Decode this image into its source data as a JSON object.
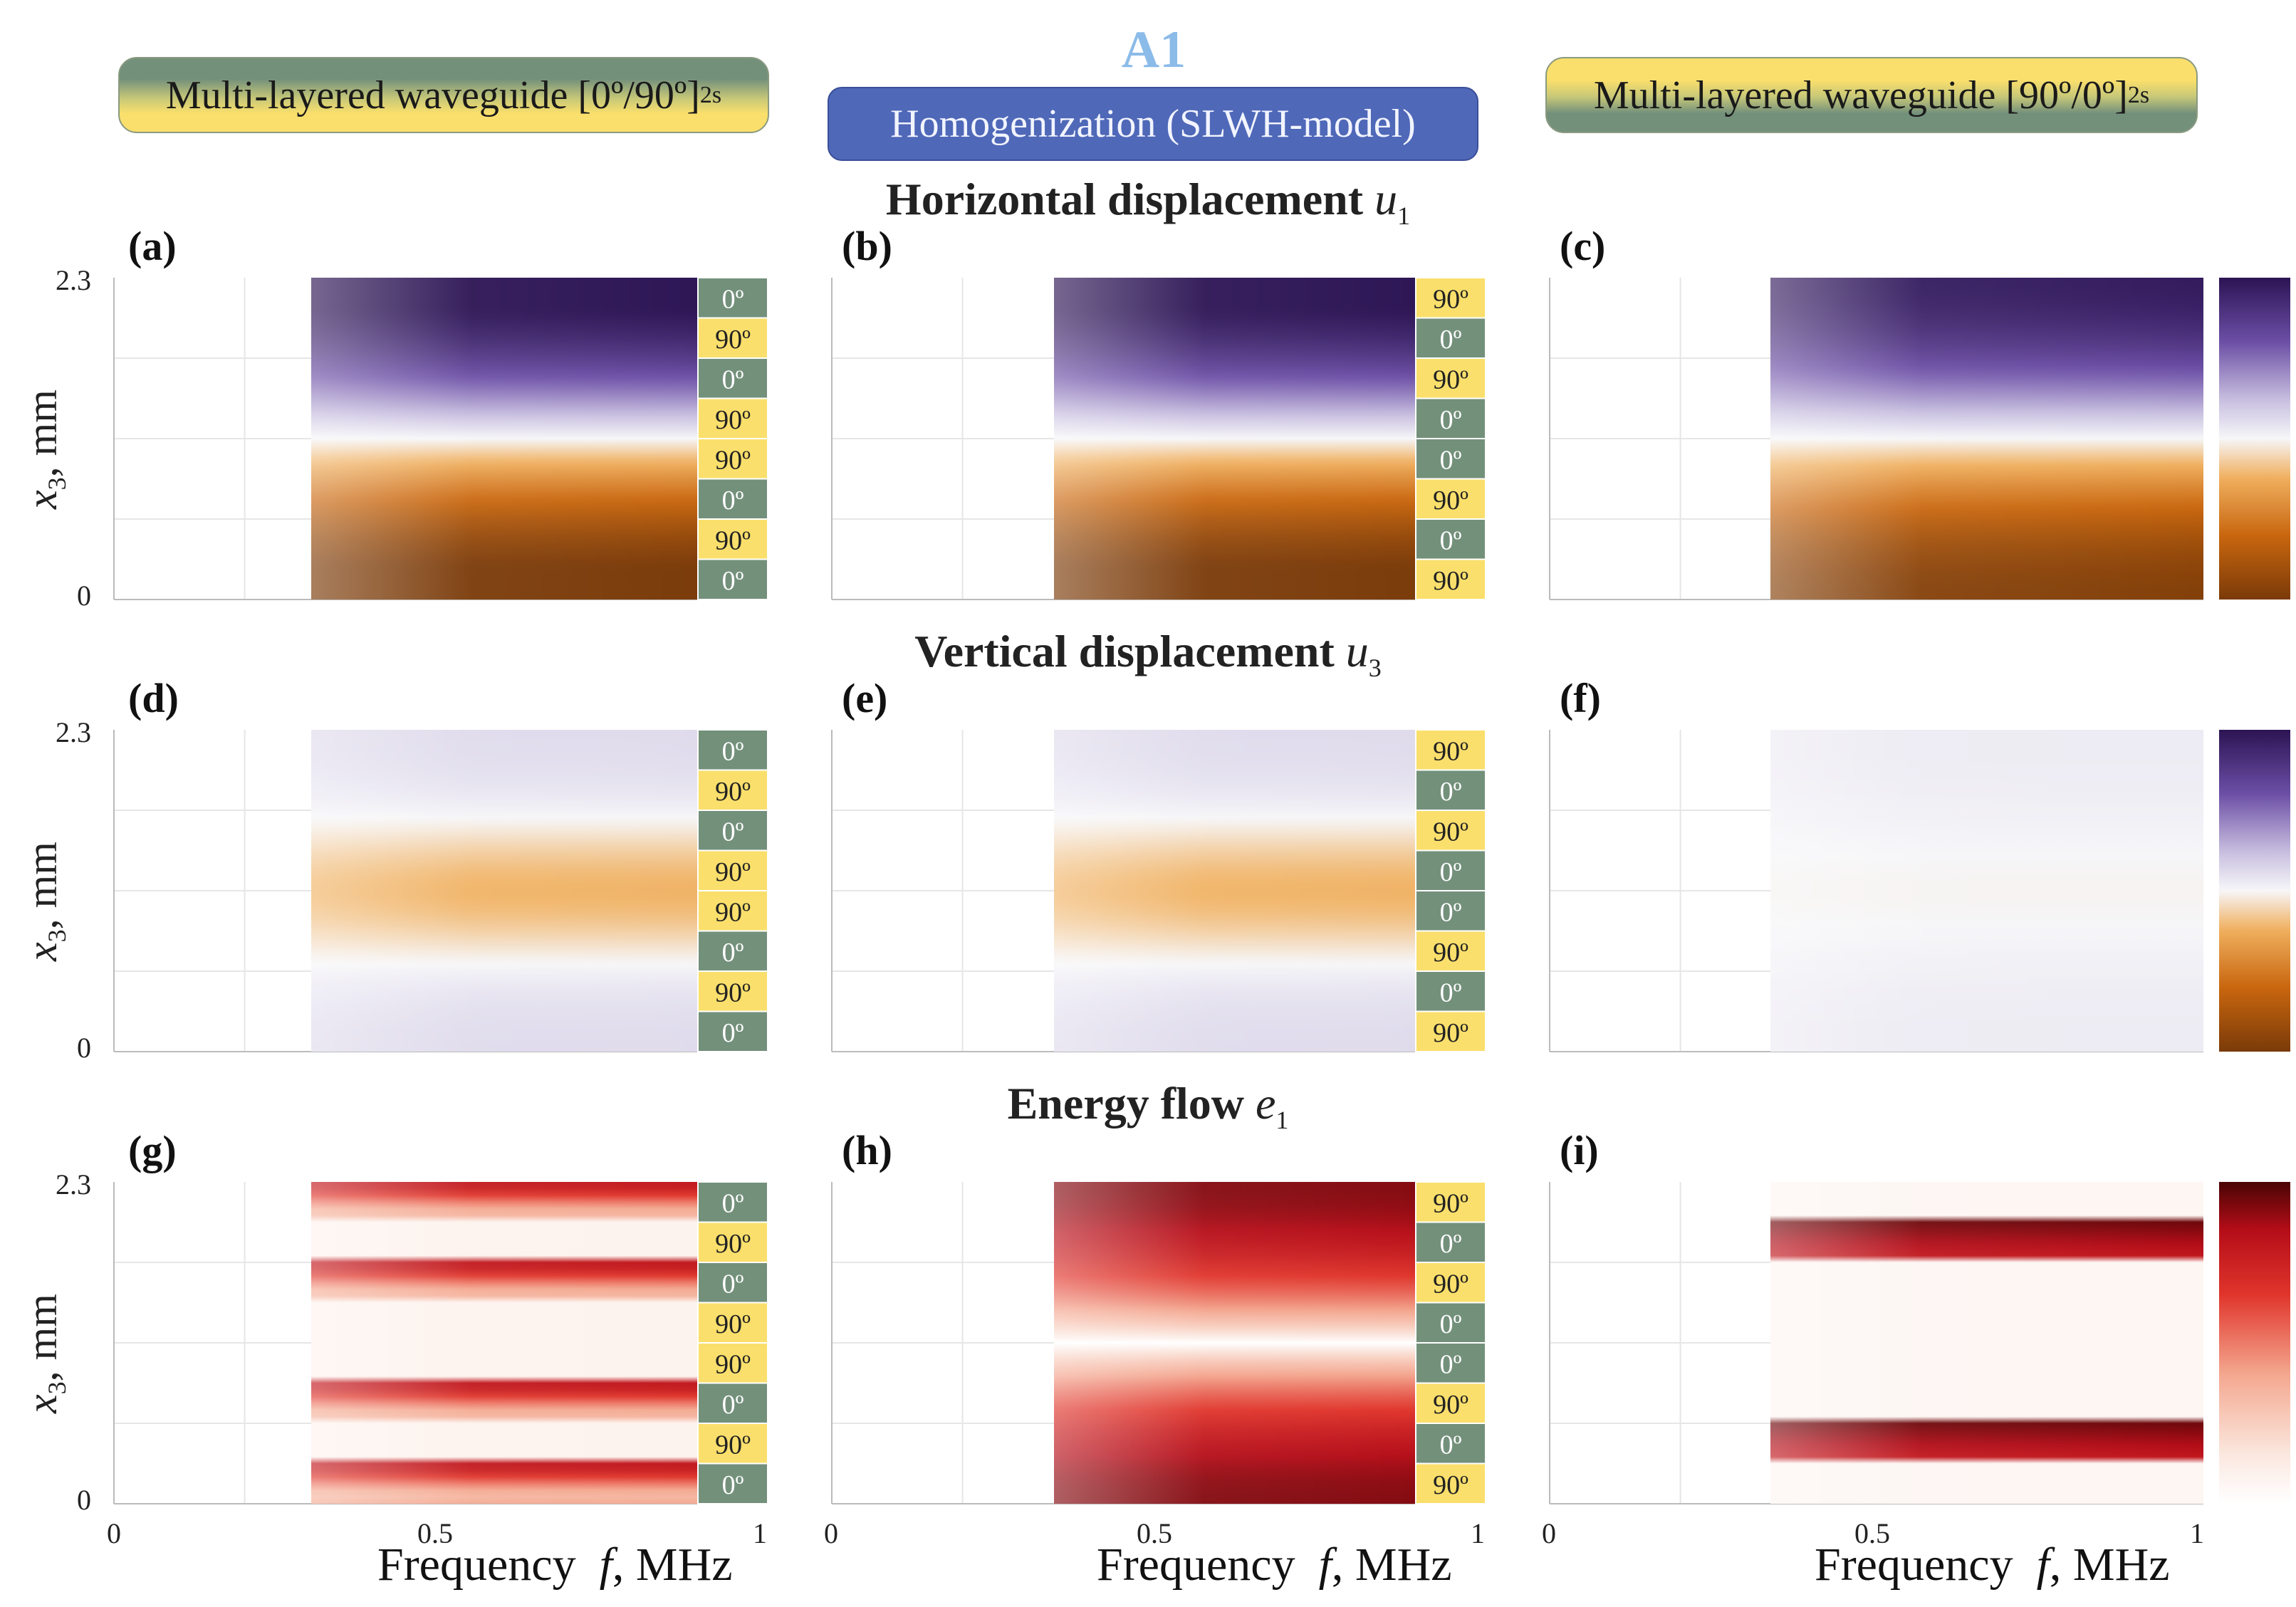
{
  "header": {
    "top_label": "A1",
    "left_banner": "Multi-layered waveguide [0º/90º]",
    "left_banner_sub": "2s",
    "middle_banner": "Homogenization (SLWH-model)",
    "right_banner": "Multi-layered waveguide [90º/0º]",
    "right_banner_sub": "2s"
  },
  "rows": [
    {
      "title": "Horizontal displacement",
      "symbol": "u",
      "symbol_sub": "1",
      "labels": [
        "(a)",
        "(b)",
        "(c)"
      ]
    },
    {
      "title": "Vertical displacement",
      "symbol": "u",
      "symbol_sub": "3",
      "labels": [
        "(d)",
        "(e)",
        "(f)"
      ]
    },
    {
      "title": "Energy flow",
      "symbol": "e",
      "symbol_sub": "1",
      "labels": [
        "(g)",
        "(h)",
        "(i)"
      ]
    }
  ],
  "axis": {
    "y_label": "x",
    "y_label_sub": "3",
    "y_label_unit": ", mm",
    "y_ticks": [
      "2.3",
      "0"
    ],
    "x_ticks": [
      "0",
      "0.5",
      "1"
    ],
    "x_label_pre": "Frequency",
    "x_label_var": "f",
    "x_label_unit": ", MHz"
  },
  "colorbars": [
    {
      "max": "1",
      "min": "-1",
      "colors": [
        "#3b1e6e",
        "#6a4fa8",
        "#f5f5f7",
        "#e08a1e",
        "#7a3a08"
      ]
    },
    {
      "max": "1",
      "min": "-1",
      "colors": [
        "#3b1e6e",
        "#6a4fa8",
        "#f5f5f7",
        "#e08a1e",
        "#7a3a08"
      ]
    },
    {
      "max": "1",
      "min": "0",
      "colors": [
        "#b00a14",
        "#e03a30",
        "#f6c0b0",
        "#ffffff"
      ]
    }
  ],
  "layups": {
    "0_90_2s": [
      "0º",
      "90º",
      "0º",
      "90º",
      "90º",
      "0º",
      "90º",
      "0º"
    ],
    "90_0_2s": [
      "90º",
      "0º",
      "90º",
      "0º",
      "0º",
      "90º",
      "0º",
      "90º"
    ]
  },
  "chart_data": [
    {
      "type": "heatmap",
      "panel": "(a)",
      "title": "Horizontal displacement u1",
      "model": "Multi-layered waveguide [0º/90º]2s",
      "xlabel": "Frequency f, MHz",
      "ylabel": "x3, mm",
      "xlim": [
        0,
        1
      ],
      "ylim": [
        0,
        2.3
      ],
      "data_x_range": [
        0.3,
        1
      ],
      "clim": [
        -1,
        1
      ],
      "layup": [
        "0º",
        "90º",
        "0º",
        "90º",
        "90º",
        "0º",
        "90º",
        "0º"
      ]
    },
    {
      "type": "heatmap",
      "panel": "(b)",
      "title": "Horizontal displacement u1",
      "model": "Homogenization (SLWH-model)",
      "xlabel": "Frequency f, MHz",
      "ylabel": "x3, mm",
      "xlim": [
        0,
        1
      ],
      "ylim": [
        0,
        2.3
      ],
      "data_x_range": [
        0.3,
        1
      ],
      "clim": [
        -1,
        1
      ],
      "layup": [
        "90º",
        "0º",
        "90º",
        "0º",
        "0º",
        "90º",
        "0º",
        "90º"
      ]
    },
    {
      "type": "heatmap",
      "panel": "(c)",
      "title": "Horizontal displacement u1",
      "model": "Multi-layered waveguide [90º/0º]2s",
      "xlabel": "Frequency f, MHz",
      "ylabel": "x3, mm",
      "xlim": [
        0,
        1
      ],
      "ylim": [
        0,
        2.3
      ],
      "data_x_range": [
        0.3,
        1
      ],
      "clim": [
        -1,
        1
      ]
    },
    {
      "type": "heatmap",
      "panel": "(d)",
      "title": "Vertical displacement u3",
      "model": "Multi-layered waveguide [0º/90º]2s",
      "xlabel": "Frequency f, MHz",
      "ylabel": "x3, mm",
      "xlim": [
        0,
        1
      ],
      "ylim": [
        0,
        2.3
      ],
      "data_x_range": [
        0.3,
        1
      ],
      "clim": [
        -1,
        1
      ],
      "layup": [
        "0º",
        "90º",
        "0º",
        "90º",
        "90º",
        "0º",
        "90º",
        "0º"
      ]
    },
    {
      "type": "heatmap",
      "panel": "(e)",
      "title": "Vertical displacement u3",
      "model": "Homogenization (SLWH-model)",
      "xlabel": "Frequency f, MHz",
      "ylabel": "x3, mm",
      "xlim": [
        0,
        1
      ],
      "ylim": [
        0,
        2.3
      ],
      "data_x_range": [
        0.3,
        1
      ],
      "clim": [
        -1,
        1
      ],
      "layup": [
        "90º",
        "0º",
        "90º",
        "0º",
        "0º",
        "90º",
        "0º",
        "90º"
      ]
    },
    {
      "type": "heatmap",
      "panel": "(f)",
      "title": "Vertical displacement u3",
      "model": "Multi-layered waveguide [90º/0º]2s",
      "xlabel": "Frequency f, MHz",
      "ylabel": "x3, mm",
      "xlim": [
        0,
        1
      ],
      "ylim": [
        0,
        2.3
      ],
      "data_x_range": [
        0.3,
        1
      ],
      "clim": [
        -1,
        1
      ]
    },
    {
      "type": "heatmap",
      "panel": "(g)",
      "title": "Energy flow e1",
      "model": "Multi-layered waveguide [0º/90º]2s",
      "xlabel": "Frequency f, MHz",
      "ylabel": "x3, mm",
      "xlim": [
        0,
        1
      ],
      "ylim": [
        0,
        2.3
      ],
      "data_x_range": [
        0.3,
        1
      ],
      "clim": [
        0,
        1
      ],
      "layup": [
        "0º",
        "90º",
        "0º",
        "90º",
        "90º",
        "0º",
        "90º",
        "0º"
      ]
    },
    {
      "type": "heatmap",
      "panel": "(h)",
      "title": "Energy flow e1",
      "model": "Homogenization (SLWH-model)",
      "xlabel": "Frequency f, MHz",
      "ylabel": "x3, mm",
      "xlim": [
        0,
        1
      ],
      "ylim": [
        0,
        2.3
      ],
      "data_x_range": [
        0.3,
        1
      ],
      "clim": [
        0,
        1
      ],
      "layup": [
        "90º",
        "0º",
        "90º",
        "0º",
        "0º",
        "90º",
        "0º",
        "90º"
      ]
    },
    {
      "type": "heatmap",
      "panel": "(i)",
      "title": "Energy flow e1",
      "model": "Multi-layered waveguide [90º/0º]2s",
      "xlabel": "Frequency f, MHz",
      "ylabel": "x3, mm",
      "xlim": [
        0,
        1
      ],
      "ylim": [
        0,
        2.3
      ],
      "data_x_range": [
        0.3,
        1
      ],
      "clim": [
        0,
        1
      ]
    }
  ]
}
